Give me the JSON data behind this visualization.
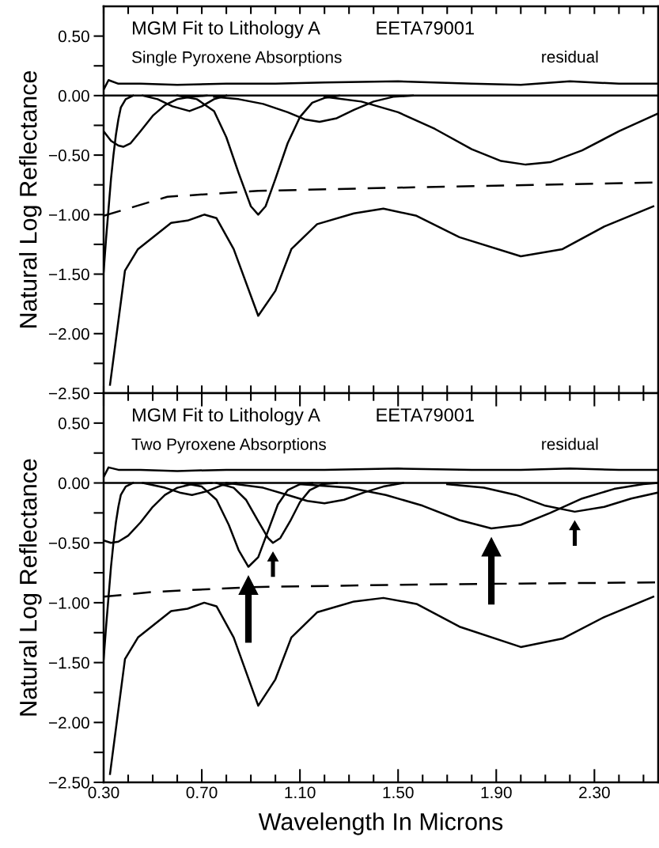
{
  "chart_data": [
    {
      "type": "line",
      "ylabel": "Natural Log Reflectance",
      "tick_labels": "y",
      "annotations": [
        "MGM Fit to Lithology A",
        "EETA79001",
        "Single Pyroxene Absorptions"
      ],
      "xlim": [
        0.3,
        2.56
      ],
      "ylim": [
        -2.5,
        0.75
      ],
      "xticks": [
        {
          "value": 0.3,
          "label": null
        },
        {
          "value": 0.4,
          "label": null
        },
        {
          "value": 0.5,
          "label": null
        },
        {
          "value": 0.6,
          "label": null
        },
        {
          "value": 0.7,
          "label": null
        },
        {
          "value": 0.8,
          "label": null
        },
        {
          "value": 0.9,
          "label": null
        },
        {
          "value": 1.0,
          "label": null
        },
        {
          "value": 1.1,
          "label": null
        },
        {
          "value": 1.2,
          "label": null
        },
        {
          "value": 1.3,
          "label": null
        },
        {
          "value": 1.4,
          "label": null
        },
        {
          "value": 1.5,
          "label": null
        },
        {
          "value": 1.6,
          "label": null
        },
        {
          "value": 1.7,
          "label": null
        },
        {
          "value": 1.8,
          "label": null
        },
        {
          "value": 1.9,
          "label": null
        },
        {
          "value": 2.0,
          "label": null
        },
        {
          "value": 2.1,
          "label": null
        },
        {
          "value": 2.2,
          "label": null
        },
        {
          "value": 2.3,
          "label": null
        },
        {
          "value": 2.4,
          "label": null
        },
        {
          "value": 2.5,
          "label": null
        }
      ],
      "yticks": [
        {
          "value": -2.5,
          "label": "−2.50"
        },
        {
          "value": -2.25,
          "label": null
        },
        {
          "value": -2.0,
          "label": "−2.00"
        },
        {
          "value": -1.75,
          "label": null
        },
        {
          "value": -1.5,
          "label": "−1.50"
        },
        {
          "value": -1.25,
          "label": null
        },
        {
          "value": -1.0,
          "label": "−1.00"
        },
        {
          "value": -0.75,
          "label": null
        },
        {
          "value": -0.5,
          "label": "−0.50"
        },
        {
          "value": -0.25,
          "label": null
        },
        {
          "value": 0.0,
          "label": "0.00"
        },
        {
          "value": 0.25,
          "label": null
        },
        {
          "value": 0.5,
          "label": "0.50"
        }
      ],
      "ref_lines": [
        {
          "axis": "y",
          "value": 0,
          "color": "#000000"
        }
      ],
      "series": [
        {
          "color": "#000000",
          "x": [
            0.326,
            0.387,
            0.44,
            0.575,
            0.642,
            0.71,
            0.76,
            0.83,
            0.93,
            1.0,
            1.065,
            1.17,
            1.32,
            1.44,
            1.575,
            1.75,
            2.0,
            2.17,
            2.34,
            2.54
          ],
          "values": [
            -2.43,
            -1.47,
            -1.29,
            -1.07,
            -1.05,
            -1.0,
            -1.03,
            -1.29,
            -1.85,
            -1.64,
            -1.29,
            -1.08,
            -0.99,
            -0.95,
            -1.01,
            -1.19,
            -1.35,
            -1.29,
            -1.1,
            -0.93
          ]
        },
        {
          "color": "#000000",
          "line_style": "dashed",
          "x": [
            0.3,
            0.56,
            0.93,
            1.58,
            2.56
          ],
          "values": [
            -1.01,
            -0.85,
            -0.8,
            -0.77,
            -0.73
          ]
        },
        {
          "name": "residual",
          "color": "#000000",
          "x": [
            0.3,
            0.32,
            0.36,
            0.45,
            0.6,
            0.8,
            1.0,
            1.2,
            1.5,
            1.8,
            2.0,
            2.2,
            2.4,
            2.56
          ],
          "values": [
            0.05,
            0.13,
            0.1,
            0.1,
            0.09,
            0.1,
            0.1,
            0.11,
            0.12,
            0.1,
            0.09,
            0.12,
            0.1,
            0.1
          ]
        },
        {
          "color": "#000000",
          "x": [
            0.3,
            0.31,
            0.32,
            0.33,
            0.34,
            0.35,
            0.36,
            0.37,
            0.39,
            0.42
          ],
          "values": [
            -1.48,
            -1.2,
            -0.95,
            -0.7,
            -0.5,
            -0.33,
            -0.2,
            -0.1,
            -0.03,
            0.0
          ]
        },
        {
          "color": "#000000",
          "x": [
            0.3,
            0.33,
            0.36,
            0.38,
            0.41,
            0.45,
            0.5,
            0.55,
            0.6,
            0.66,
            0.72
          ],
          "values": [
            -0.3,
            -0.38,
            -0.42,
            -0.43,
            -0.4,
            -0.3,
            -0.17,
            -0.08,
            -0.03,
            -0.01,
            0.0
          ]
        },
        {
          "color": "#000000",
          "x": [
            0.46,
            0.52,
            0.58,
            0.65,
            0.7,
            0.75,
            0.8
          ],
          "values": [
            0.0,
            -0.03,
            -0.09,
            -0.13,
            -0.09,
            -0.03,
            0.0
          ]
        },
        {
          "color": "#000000",
          "x": [
            0.6,
            0.68,
            0.75,
            0.8,
            0.85,
            0.9,
            0.93,
            0.96,
            1.0,
            1.05,
            1.1,
            1.15,
            1.2,
            1.26
          ],
          "values": [
            0.0,
            -0.03,
            -0.13,
            -0.35,
            -0.65,
            -0.93,
            -1.0,
            -0.93,
            -0.7,
            -0.4,
            -0.18,
            -0.06,
            -0.02,
            0.0
          ]
        },
        {
          "color": "#000000",
          "x": [
            0.75,
            0.85,
            0.95,
            1.05,
            1.12,
            1.18,
            1.25,
            1.32,
            1.4,
            1.48,
            1.56
          ],
          "values": [
            -0.01,
            -0.03,
            -0.07,
            -0.14,
            -0.2,
            -0.22,
            -0.19,
            -0.12,
            -0.05,
            -0.01,
            0.0
          ]
        },
        {
          "color": "#000000",
          "x": [
            1.2,
            1.35,
            1.5,
            1.65,
            1.8,
            1.92,
            2.02,
            2.12,
            2.25,
            2.4,
            2.56
          ],
          "values": [
            -0.01,
            -0.05,
            -0.14,
            -0.28,
            -0.45,
            -0.55,
            -0.58,
            -0.56,
            -0.46,
            -0.3,
            -0.15
          ]
        }
      ]
    },
    {
      "type": "line",
      "ylabel": "Natural Log Reflectance",
      "xlabel": "Wavelength In Microns",
      "annotations": [
        "MGM Fit to Lithology A",
        "EETA79001",
        "Two Pyroxene Absorptions"
      ],
      "xlim": [
        0.3,
        2.56
      ],
      "ylim": [
        -2.5,
        0.75
      ],
      "xticks": [
        {
          "value": 0.3,
          "label": "0.30"
        },
        {
          "value": 0.4,
          "label": null
        },
        {
          "value": 0.5,
          "label": null
        },
        {
          "value": 0.6,
          "label": null
        },
        {
          "value": 0.7,
          "label": "0.70"
        },
        {
          "value": 0.8,
          "label": null
        },
        {
          "value": 0.9,
          "label": null
        },
        {
          "value": 1.0,
          "label": null
        },
        {
          "value": 1.1,
          "label": "1.10"
        },
        {
          "value": 1.2,
          "label": null
        },
        {
          "value": 1.3,
          "label": null
        },
        {
          "value": 1.4,
          "label": null
        },
        {
          "value": 1.5,
          "label": "1.50"
        },
        {
          "value": 1.6,
          "label": null
        },
        {
          "value": 1.7,
          "label": null
        },
        {
          "value": 1.8,
          "label": null
        },
        {
          "value": 1.9,
          "label": "1.90"
        },
        {
          "value": 2.0,
          "label": null
        },
        {
          "value": 2.1,
          "label": null
        },
        {
          "value": 2.2,
          "label": null
        },
        {
          "value": 2.3,
          "label": "2.30"
        },
        {
          "value": 2.4,
          "label": null
        },
        {
          "value": 2.5,
          "label": null
        }
      ],
      "yticks": [
        {
          "value": -2.5,
          "label": "−2.50"
        },
        {
          "value": -2.25,
          "label": null
        },
        {
          "value": -2.0,
          "label": "−2.00"
        },
        {
          "value": -1.75,
          "label": null
        },
        {
          "value": -1.5,
          "label": "−1.50"
        },
        {
          "value": -1.25,
          "label": null
        },
        {
          "value": -1.0,
          "label": "−1.00"
        },
        {
          "value": -0.75,
          "label": null
        },
        {
          "value": -0.5,
          "label": "−0.50"
        },
        {
          "value": -0.25,
          "label": null
        },
        {
          "value": 0.0,
          "label": "0.00"
        },
        {
          "value": 0.25,
          "label": null
        },
        {
          "value": 0.5,
          "label": "0.50"
        }
      ],
      "ref_lines": [
        {
          "axis": "y",
          "value": 0,
          "color": "#000000"
        }
      ],
      "series": [
        {
          "color": "#000000",
          "x": [
            0.326,
            0.387,
            0.44,
            0.575,
            0.642,
            0.71,
            0.76,
            0.83,
            0.93,
            1.0,
            1.065,
            1.17,
            1.32,
            1.44,
            1.575,
            1.75,
            2.0,
            2.17,
            2.34,
            2.54
          ],
          "values": [
            -2.43,
            -1.47,
            -1.29,
            -1.07,
            -1.05,
            -1.0,
            -1.03,
            -1.29,
            -1.86,
            -1.64,
            -1.29,
            -1.08,
            -0.99,
            -0.96,
            -1.01,
            -1.2,
            -1.37,
            -1.3,
            -1.12,
            -0.95
          ]
        },
        {
          "color": "#000000",
          "line_style": "dashed",
          "x": [
            0.3,
            0.5,
            0.9,
            1.5,
            2.0,
            2.56
          ],
          "values": [
            -0.95,
            -0.91,
            -0.87,
            -0.85,
            -0.84,
            -0.83
          ]
        },
        {
          "name": "residual",
          "color": "#000000",
          "x": [
            0.3,
            0.32,
            0.36,
            0.45,
            0.6,
            0.8,
            1.0,
            1.2,
            1.5,
            1.8,
            2.0,
            2.2,
            2.4,
            2.56
          ],
          "values": [
            0.05,
            0.13,
            0.11,
            0.11,
            0.1,
            0.11,
            0.11,
            0.11,
            0.12,
            0.11,
            0.11,
            0.12,
            0.11,
            0.11
          ]
        },
        {
          "color": "#000000",
          "x": [
            0.3,
            0.31,
            0.32,
            0.33,
            0.34,
            0.35,
            0.36,
            0.37,
            0.39,
            0.42
          ],
          "values": [
            -1.47,
            -1.2,
            -0.95,
            -0.7,
            -0.5,
            -0.33,
            -0.2,
            -0.1,
            -0.03,
            0.0
          ]
        },
        {
          "color": "#000000",
          "x": [
            0.3,
            0.33,
            0.36,
            0.4,
            0.45,
            0.5,
            0.55,
            0.6,
            0.66,
            0.74
          ],
          "values": [
            -0.48,
            -0.5,
            -0.49,
            -0.44,
            -0.33,
            -0.2,
            -0.1,
            -0.04,
            -0.01,
            0.0
          ]
        },
        {
          "color": "#000000",
          "x": [
            0.46,
            0.55,
            0.61,
            0.66,
            0.72,
            0.78,
            0.84
          ],
          "values": [
            0.0,
            -0.04,
            -0.08,
            -0.1,
            -0.07,
            -0.02,
            0.0
          ]
        },
        {
          "color": "#000000",
          "x": [
            0.62,
            0.7,
            0.76,
            0.81,
            0.85,
            0.89,
            0.93,
            0.97,
            1.01,
            1.05,
            1.1,
            1.15
          ],
          "values": [
            0.0,
            -0.03,
            -0.14,
            -0.35,
            -0.56,
            -0.7,
            -0.62,
            -0.4,
            -0.18,
            -0.06,
            -0.01,
            0.0
          ]
        },
        {
          "color": "#000000",
          "x": [
            0.76,
            0.83,
            0.88,
            0.93,
            0.97,
            0.99,
            1.02,
            1.06,
            1.1,
            1.14,
            1.19,
            1.25
          ],
          "values": [
            0.0,
            -0.04,
            -0.14,
            -0.32,
            -0.46,
            -0.5,
            -0.46,
            -0.32,
            -0.16,
            -0.06,
            -0.01,
            0.0
          ]
        },
        {
          "color": "#000000",
          "x": [
            0.8,
            0.95,
            1.05,
            1.13,
            1.2,
            1.28,
            1.36,
            1.44,
            1.52
          ],
          "values": [
            0.0,
            -0.04,
            -0.1,
            -0.15,
            -0.17,
            -0.14,
            -0.08,
            -0.03,
            0.0
          ]
        },
        {
          "color": "#000000",
          "x": [
            1.1,
            1.3,
            1.45,
            1.6,
            1.75,
            1.88,
            2.0,
            2.12,
            2.25,
            2.38,
            2.5,
            2.56
          ],
          "values": [
            -0.01,
            -0.04,
            -0.1,
            -0.19,
            -0.31,
            -0.38,
            -0.35,
            -0.25,
            -0.13,
            -0.05,
            -0.01,
            0.0
          ]
        },
        {
          "color": "#000000",
          "x": [
            1.7,
            1.85,
            1.98,
            2.1,
            2.22,
            2.34,
            2.45,
            2.56
          ],
          "values": [
            -0.01,
            -0.04,
            -0.1,
            -0.19,
            -0.24,
            -0.2,
            -0.13,
            -0.08
          ]
        }
      ]
    }
  ]
}
